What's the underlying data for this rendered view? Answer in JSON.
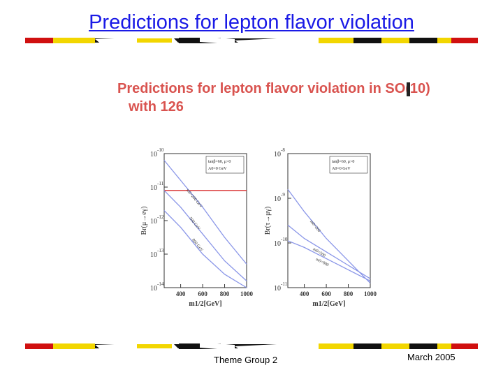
{
  "slide": {
    "title": "Predictions for lepton flavor violation",
    "footer_left": "Theme Group 2",
    "footer_right": "March 2005"
  },
  "figure": {
    "title_line1": "Predictions for lepton flavor violation in SO(10)",
    "title_line2": "with 126"
  },
  "colors": {
    "title_blue": "#1a1ae6",
    "figure_title_red": "#d9534f",
    "curve_blue": "#8a96e8",
    "bound_red": "#d93030",
    "stripe_yellow": "#f2d600",
    "stripe_red": "#d01010",
    "stripe_black": "#111111"
  },
  "chart_data": [
    {
      "type": "line",
      "ylabel": "Br(μ→eγ)",
      "xlabel": "m1/2[GeV]",
      "xlim": [
        250,
        1000
      ],
      "ylim_log10": [
        -14,
        -10
      ],
      "x_ticks": [
        "400",
        "600",
        "800",
        "1000"
      ],
      "y_ticks": [
        {
          "base": "10",
          "exp": "-10",
          "log": -10
        },
        {
          "base": "10",
          "exp": "-11",
          "log": -11
        },
        {
          "base": "10",
          "exp": "-12",
          "log": -12
        },
        {
          "base": "10",
          "exp": "-13",
          "log": -13
        },
        {
          "base": "10",
          "exp": "-14",
          "log": -14
        }
      ],
      "legend_line1": "tanβ=60, μ>0",
      "legend_line2": "A0=0 GeV",
      "bound_log10": -11.1,
      "series": [
        {
          "name": "m0=200 GeV",
          "x": [
            250,
            400,
            600,
            800,
            1000
          ],
          "log10_y": [
            -10.2,
            -10.8,
            -11.6,
            -12.5,
            -13.3
          ]
        },
        {
          "name": "500 GeV",
          "x": [
            250,
            400,
            600,
            800,
            1000
          ],
          "log10_y": [
            -11.1,
            -11.6,
            -12.4,
            -13.2,
            -13.8
          ]
        },
        {
          "name": "800 GeV",
          "x": [
            250,
            400,
            600,
            800,
            1000
          ],
          "log10_y": [
            -11.7,
            -12.2,
            -13.0,
            -13.6,
            -14.0
          ]
        }
      ]
    },
    {
      "type": "line",
      "ylabel": "Br(τ→μγ)",
      "xlabel": "m1/2[GeV]",
      "xlim": [
        250,
        1000
      ],
      "ylim_log10": [
        -11,
        -8
      ],
      "x_ticks": [
        "400",
        "600",
        "800",
        "1000"
      ],
      "y_ticks": [
        {
          "base": "10",
          "exp": "-8",
          "log": -8
        },
        {
          "base": "10",
          "exp": "-9",
          "log": -9
        },
        {
          "base": "10",
          "exp": "-10",
          "log": -10
        },
        {
          "base": "10",
          "exp": "-11",
          "log": -11
        }
      ],
      "legend_line1": "tanβ=60, μ>0",
      "legend_line2": "A0=0 GeV",
      "series": [
        {
          "name": "m0=200",
          "x": [
            250,
            400,
            600,
            800,
            1000
          ],
          "log10_y": [
            -8.8,
            -9.3,
            -9.9,
            -10.4,
            -10.9
          ]
        },
        {
          "name": "m0=500",
          "x": [
            250,
            400,
            600,
            800,
            1000
          ],
          "log10_y": [
            -9.6,
            -9.9,
            -10.2,
            -10.5,
            -10.8
          ]
        },
        {
          "name": "m0=800",
          "x": [
            250,
            400,
            600,
            800,
            1000
          ],
          "log10_y": [
            -9.95,
            -10.1,
            -10.35,
            -10.6,
            -10.85
          ]
        }
      ]
    }
  ]
}
